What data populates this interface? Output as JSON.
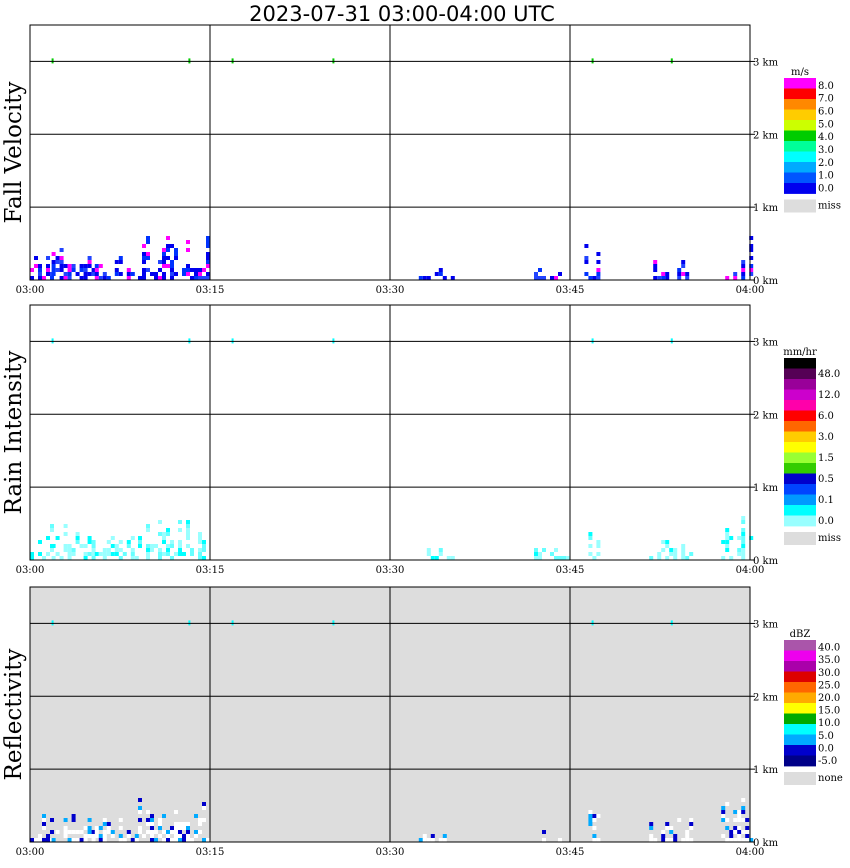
{
  "chart_data": {
    "type": "heatmap",
    "title": "2023-07-31   03:00-04:00 UTC",
    "x_ticks": [
      "03:00",
      "03:15",
      "03:30",
      "03:45",
      "04:00"
    ],
    "y_ticks": [
      "0 km",
      "1 km",
      "2 km",
      "3 km"
    ],
    "ylim": [
      0,
      3.5
    ],
    "panels": [
      {
        "ylabel": "Fall Velocity",
        "background": "#ffffff",
        "legend": {
          "unit": "m/s",
          "colors": [
            "#ff00ff",
            "#ff0000",
            "#ff8800",
            "#ffcc00",
            "#ccff00",
            "#00cc00",
            "#00ff99",
            "#00ffff",
            "#00aaff",
            "#0055ff",
            "#0000ee"
          ],
          "labels": [
            "8.0",
            "7.0",
            "6.0",
            "5.0",
            "4.0",
            "3.0",
            "2.0",
            "1.0",
            "0.0"
          ],
          "miss_label": "miss"
        },
        "echo_colors": [
          "#0000ee",
          "#0033ff",
          "#2244ff",
          "#ff00ff",
          "#0000ee"
        ],
        "top_echo_color": "#00cc00"
      },
      {
        "ylabel": "Rain Intensity",
        "background": "#ffffff",
        "legend": {
          "unit": "mm/hr",
          "colors": [
            "#000000",
            "#550055",
            "#990099",
            "#cc00cc",
            "#ff00aa",
            "#ff0000",
            "#ff6600",
            "#ffcc00",
            "#ffff00",
            "#99ff33",
            "#33cc00",
            "#0000cc",
            "#0044ff",
            "#0099ff",
            "#00ffff",
            "#99ffff"
          ],
          "labels": [
            "48.0",
            "12.0",
            "6.0",
            "3.0",
            "1.5",
            "0.5",
            "0.1",
            "0.0"
          ],
          "miss_label": "miss"
        },
        "echo_colors": [
          "#99ffff",
          "#66ffff",
          "#99ffff",
          "#00ffff",
          "#99ffff"
        ],
        "top_echo_color": "#00ffff"
      },
      {
        "ylabel": "Reflectivity",
        "background": "#dddddd",
        "legend": {
          "unit": "dBZ",
          "colors": [
            "#aa55aa",
            "#ee00ee",
            "#aa00aa",
            "#dd0000",
            "#ff6600",
            "#ffaa00",
            "#ffff00",
            "#00aa00",
            "#00ffff",
            "#00aaff",
            "#0000cc",
            "#000088"
          ],
          "labels": [
            "40.0",
            "35.0",
            "30.0",
            "25.0",
            "20.0",
            "15.0",
            "10.0",
            "5.0",
            "0.0",
            "-5.0"
          ],
          "miss_label": "none"
        },
        "echo_colors": [
          "#ffffff",
          "#ffffff",
          "#0000cc",
          "#00aaff",
          "#ffffff"
        ],
        "top_echo_color": "#00ffff"
      }
    ]
  }
}
